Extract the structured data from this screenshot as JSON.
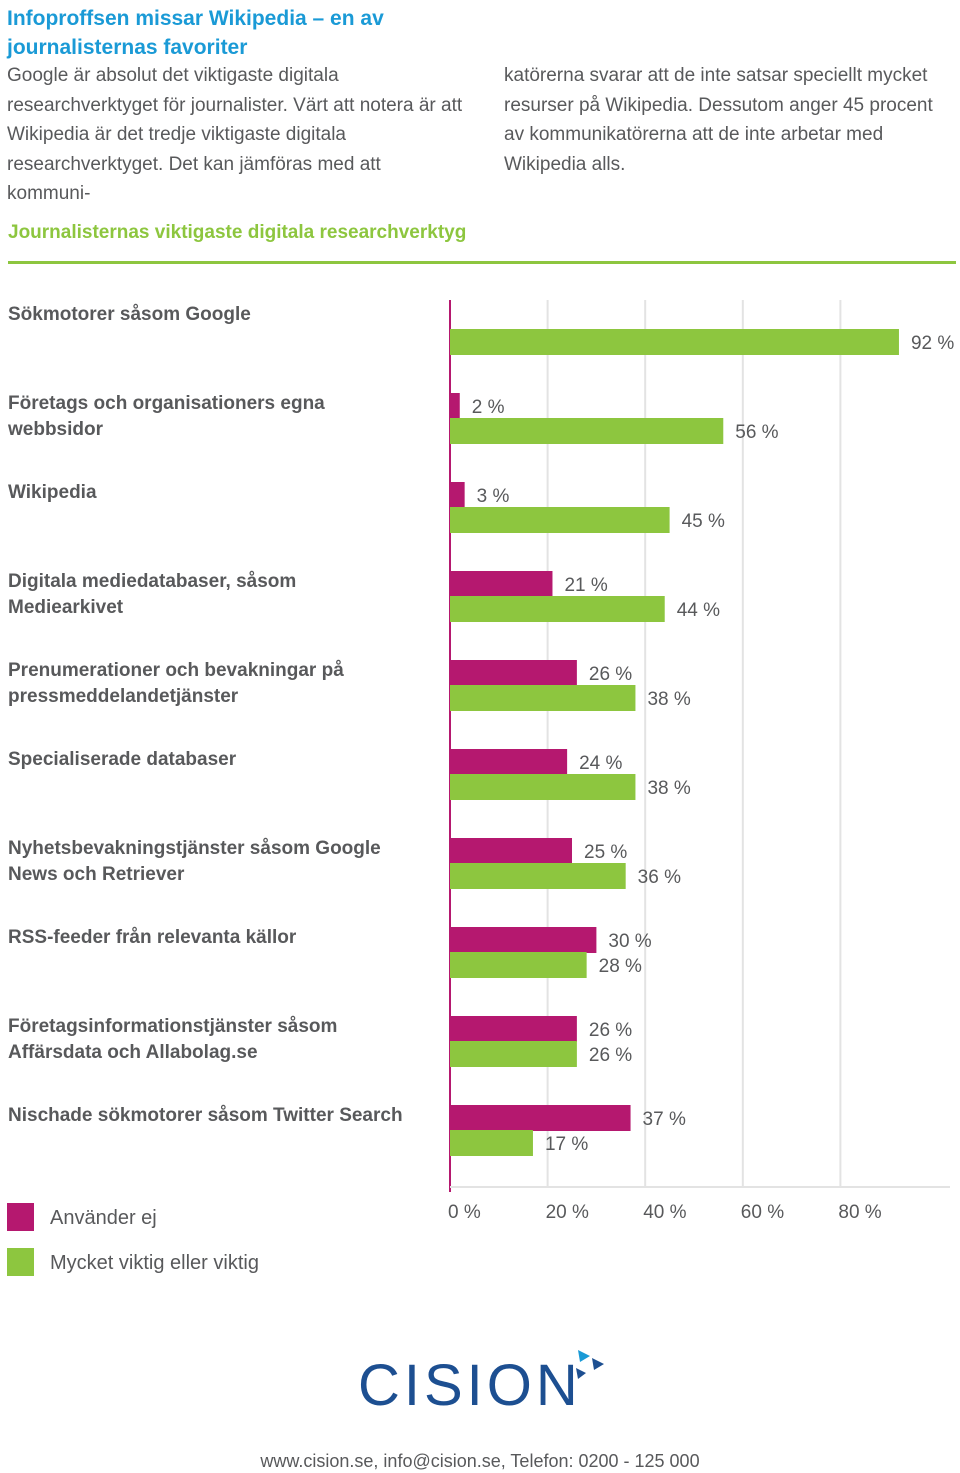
{
  "headline": "Infoproffsen missar Wikipedia – en av journalisternas favoriter",
  "intro_left": "Google är absolut det viktigaste digitala researchverktyget för journalister. Värt att notera är att Wikipedia är det tredje viktigaste digitala researchverktyget. Det kan jämföras med att kommuni-",
  "intro_right": "katörerna svarar att de inte satsar speciellt mycket resurser på Wikipedia. Dessutom anger 45 procent av kommunikatörerna att de inte arbetar med Wikipedia alls.",
  "colors": {
    "accent_blue": "#1a9ad6",
    "magenta": "#b5186f",
    "green": "#8dc63f",
    "logo_blue": "#1d4f91",
    "logo_teal": "#1a9ad6"
  },
  "chart_data": {
    "type": "bar",
    "orientation": "horizontal",
    "title": "Journalisternas viktigaste digitala researchverktyg",
    "categories": [
      [
        "Sökmotorer såsom Google"
      ],
      [
        "Företags och organisationers egna",
        "webbsidor"
      ],
      [
        "Wikipedia"
      ],
      [
        "Digitala mediedatabaser, såsom",
        "Mediearkivet"
      ],
      [
        "Prenumerationer och bevakningar på",
        "pressmeddelandetjänster"
      ],
      [
        "Specialiserade databaser"
      ],
      [
        "Nyhetsbevakningstjänster såsom Google",
        "News och Retriever"
      ],
      [
        "RSS-feeder från relevanta källor"
      ],
      [
        "Företagsinformationstjänster såsom",
        "Affärsdata och Allabolag.se"
      ],
      [
        "Nischade sökmotorer såsom Twitter Search"
      ]
    ],
    "series": [
      {
        "name": "Använder ej",
        "color": "#b5186f",
        "values": [
          null,
          2,
          3,
          21,
          26,
          24,
          25,
          30,
          26,
          37
        ]
      },
      {
        "name": "Mycket viktig eller viktig",
        "color": "#8dc63f",
        "values": [
          92,
          56,
          45,
          44,
          38,
          38,
          36,
          28,
          26,
          17
        ]
      }
    ],
    "value_labels": [
      [
        "",
        "92 %"
      ],
      [
        "2 %",
        "56 %"
      ],
      [
        "3 %",
        "45 %"
      ],
      [
        "21 %",
        "44 %"
      ],
      [
        "26 %",
        "38 %"
      ],
      [
        "24 %",
        "38 %"
      ],
      [
        "25 %",
        "36 %"
      ],
      [
        "30 %",
        "28 %"
      ],
      [
        "26 %",
        "26 %"
      ],
      [
        "37 %",
        "17 %"
      ]
    ],
    "xlim": [
      0,
      100
    ],
    "xticks": [
      0,
      20,
      40,
      60,
      80
    ],
    "xtick_labels": [
      "0 %",
      "20 %",
      "40 %",
      "60 %",
      "80 %"
    ],
    "grid": true,
    "legend_position": "bottom-left"
  },
  "legend": [
    {
      "label": "Använder ej",
      "color": "#b5186f"
    },
    {
      "label": "Mycket viktig eller viktig",
      "color": "#8dc63f"
    }
  ],
  "logo_text": "CISION",
  "footer": "www.cision.se, info@cision.se, Telefon: 0200 - 125 000"
}
